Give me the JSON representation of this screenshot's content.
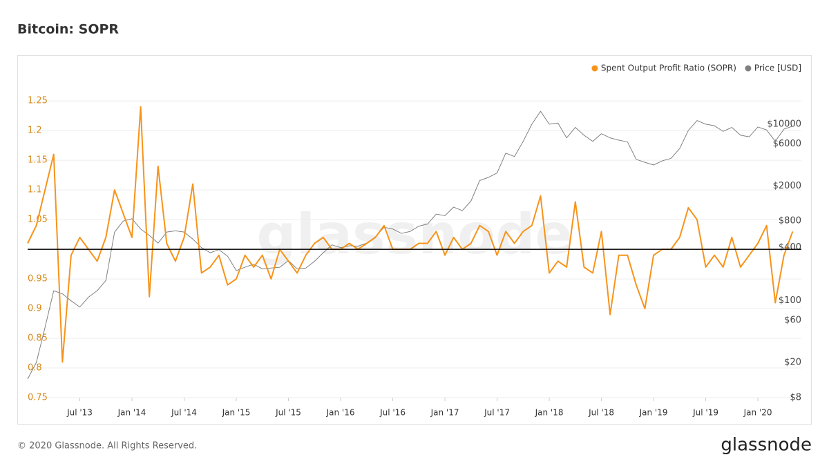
{
  "chart_data": {
    "type": "line",
    "title": "Bitcoin: SOPR",
    "footer": "© 2020 Glassnode. All Rights Reserved.",
    "brand": "glassnode",
    "x": [
      "2013-01",
      "2013-02",
      "2013-03",
      "2013-04",
      "2013-05",
      "2013-06",
      "2013-07",
      "2013-08",
      "2013-09",
      "2013-10",
      "2013-11",
      "2013-12",
      "2014-01",
      "2014-02",
      "2014-03",
      "2014-04",
      "2014-05",
      "2014-06",
      "2014-07",
      "2014-08",
      "2014-09",
      "2014-10",
      "2014-11",
      "2014-12",
      "2015-01",
      "2015-02",
      "2015-03",
      "2015-04",
      "2015-05",
      "2015-06",
      "2015-07",
      "2015-08",
      "2015-09",
      "2015-10",
      "2015-11",
      "2015-12",
      "2016-01",
      "2016-02",
      "2016-03",
      "2016-04",
      "2016-05",
      "2016-06",
      "2016-07",
      "2016-08",
      "2016-09",
      "2016-10",
      "2016-11",
      "2016-12",
      "2017-01",
      "2017-02",
      "2017-03",
      "2017-04",
      "2017-05",
      "2017-06",
      "2017-07",
      "2017-08",
      "2017-09",
      "2017-10",
      "2017-11",
      "2017-12",
      "2018-01",
      "2018-02",
      "2018-03",
      "2018-04",
      "2018-05",
      "2018-06",
      "2018-07",
      "2018-08",
      "2018-09",
      "2018-10",
      "2018-11",
      "2018-12",
      "2019-01",
      "2019-02",
      "2019-03",
      "2019-04",
      "2019-05",
      "2019-06",
      "2019-07",
      "2019-08",
      "2019-09",
      "2019-10",
      "2019-11",
      "2019-12",
      "2020-01",
      "2020-02",
      "2020-03",
      "2020-04",
      "2020-05"
    ],
    "series": [
      {
        "name": "Spent Output Profit Ratio (SOPR)",
        "color": "#f7931a",
        "axis": "y",
        "values": [
          1.01,
          1.04,
          1.1,
          1.16,
          0.81,
          0.99,
          1.02,
          1.0,
          0.98,
          1.02,
          1.1,
          1.06,
          1.02,
          1.24,
          0.92,
          1.14,
          1.01,
          0.98,
          1.02,
          1.11,
          0.96,
          0.97,
          0.99,
          0.94,
          0.95,
          0.99,
          0.97,
          0.99,
          0.95,
          1.0,
          0.98,
          0.96,
          0.99,
          1.01,
          1.02,
          1.0,
          1.0,
          1.01,
          1.0,
          1.01,
          1.02,
          1.04,
          1.0,
          1.0,
          1.0,
          1.01,
          1.01,
          1.03,
          0.99,
          1.02,
          1.0,
          1.01,
          1.04,
          1.03,
          0.99,
          1.03,
          1.01,
          1.03,
          1.04,
          1.09,
          0.96,
          0.98,
          0.97,
          1.08,
          0.97,
          0.96,
          1.03,
          0.89,
          0.99,
          0.99,
          0.94,
          0.9,
          0.99,
          1.0,
          1.0,
          1.02,
          1.07,
          1.05,
          0.97,
          0.99,
          0.97,
          1.02,
          0.97,
          0.99,
          1.01,
          1.04,
          0.91,
          0.99,
          1.03
        ]
      },
      {
        "name": "Price [USD]",
        "color": "#808080",
        "axis": "y2",
        "values": [
          13,
          20,
          50,
          130,
          120,
          100,
          85,
          110,
          130,
          170,
          600,
          800,
          850,
          650,
          550,
          450,
          600,
          620,
          600,
          500,
          400,
          350,
          380,
          320,
          220,
          240,
          260,
          230,
          235,
          240,
          285,
          230,
          235,
          280,
          350,
          430,
          400,
          420,
          415,
          450,
          530,
          680,
          650,
          580,
          610,
          700,
          740,
          960,
          920,
          1150,
          1050,
          1350,
          2300,
          2500,
          2800,
          4700,
          4300,
          6400,
          10000,
          14000,
          10000,
          10300,
          7000,
          9200,
          7500,
          6400,
          7800,
          7000,
          6600,
          6300,
          4000,
          3700,
          3450,
          3850,
          4100,
          5300,
          8500,
          11000,
          10000,
          9600,
          8300,
          9200,
          7500,
          7200,
          9300,
          8600,
          6400,
          8800,
          9500
        ]
      }
    ],
    "xlim": [
      "2013-01",
      "2020-06"
    ],
    "xticks": [
      {
        "value": "2013-07",
        "label": "Jul '13"
      },
      {
        "value": "2014-01",
        "label": "Jan '14"
      },
      {
        "value": "2014-07",
        "label": "Jul '14"
      },
      {
        "value": "2015-01",
        "label": "Jan '15"
      },
      {
        "value": "2015-07",
        "label": "Jul '15"
      },
      {
        "value": "2016-01",
        "label": "Jan '16"
      },
      {
        "value": "2016-07",
        "label": "Jul '16"
      },
      {
        "value": "2017-01",
        "label": "Jan '17"
      },
      {
        "value": "2017-07",
        "label": "Jul '17"
      },
      {
        "value": "2018-01",
        "label": "Jan '18"
      },
      {
        "value": "2018-07",
        "label": "Jul '18"
      },
      {
        "value": "2019-01",
        "label": "Jan '19"
      },
      {
        "value": "2019-07",
        "label": "Jul '19"
      },
      {
        "value": "2020-01",
        "label": "Jan '20"
      }
    ],
    "ylim": [
      0.75,
      1.27
    ],
    "yticks": [
      0.75,
      0.8,
      0.85,
      0.9,
      0.95,
      1.05,
      1.1,
      1.15,
      1.2,
      1.25
    ],
    "baseline": 1,
    "y2lim": [
      8,
      25000
    ],
    "y2scale": "log",
    "y2ticks": [
      {
        "value": 8,
        "label": "$8"
      },
      {
        "value": 20,
        "label": "$20"
      },
      {
        "value": 60,
        "label": "$60"
      },
      {
        "value": 100,
        "label": "$100"
      },
      {
        "value": 400,
        "label": "$400"
      },
      {
        "value": 800,
        "label": "$800"
      },
      {
        "value": 2000,
        "label": "$2000"
      },
      {
        "value": 6000,
        "label": "$6000"
      },
      {
        "value": 10000,
        "label": "$10000"
      }
    ],
    "grid": true,
    "legend": "top-right"
  }
}
